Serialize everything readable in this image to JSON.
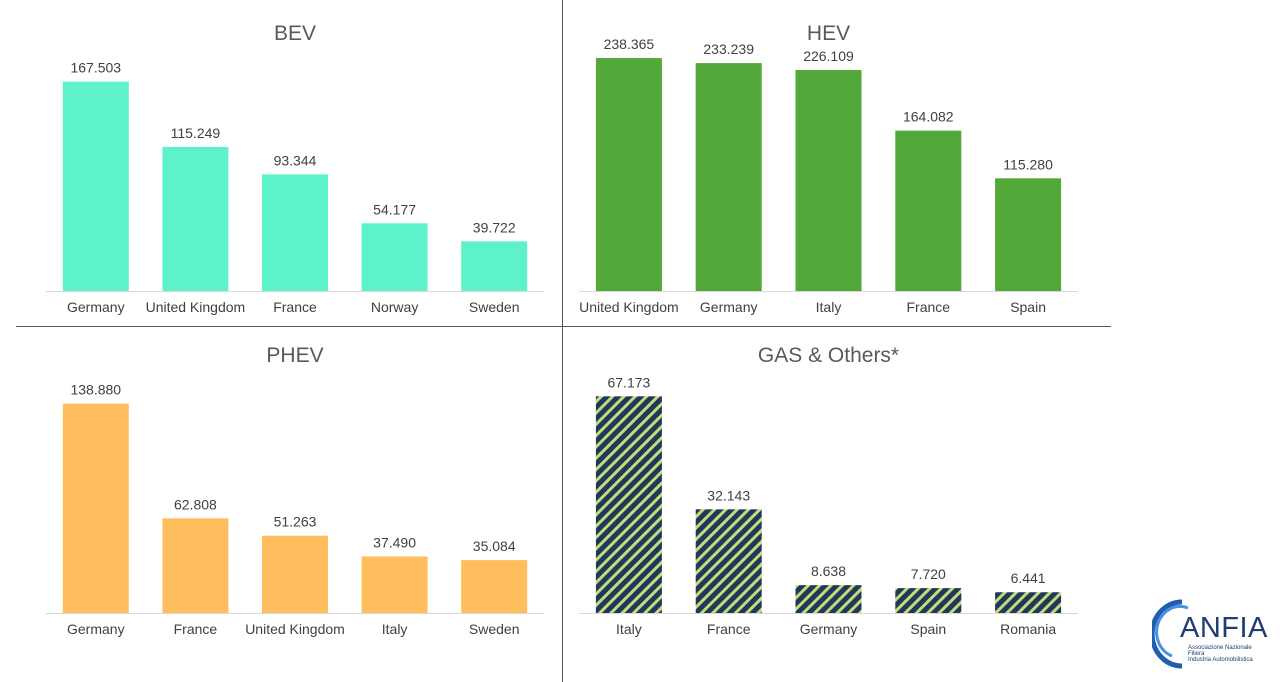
{
  "colors": {
    "bev": "#5ef2cb",
    "hev": "#52a838",
    "phev": "#ffbe5d",
    "gas_base": "#1e3a5a",
    "gas_stripe": "#c9d97a",
    "axis": "#d9d9d9",
    "divider": "#595959",
    "text": "#404040",
    "title": "#595959"
  },
  "chart_data": [
    {
      "type": "bar",
      "title": "BEV",
      "categories": [
        "Germany",
        "United Kingdom",
        "France",
        "Norway",
        "Sweden"
      ],
      "values": [
        167503,
        115249,
        93344,
        54177,
        39722
      ],
      "data_labels": [
        "167.503",
        "115.249",
        "93.344",
        "54.177",
        "39.722"
      ],
      "ylim": [
        0,
        240000
      ],
      "grid": false,
      "color": "bev"
    },
    {
      "type": "bar",
      "title": "HEV",
      "categories": [
        "United Kingdom",
        "Germany",
        "Italy",
        "France",
        "Spain"
      ],
      "values": [
        238365,
        233239,
        226109,
        164082,
        115280
      ],
      "data_labels": [
        "238.365",
        "233.239",
        "226.109",
        "164.082",
        "115.280"
      ],
      "ylim": [
        0,
        307000
      ],
      "grid": false,
      "color": "hev"
    },
    {
      "type": "bar",
      "title": "PHEV",
      "categories": [
        "Germany",
        "France",
        "United Kingdom",
        "Italy",
        "Sweden"
      ],
      "values": [
        138880,
        62808,
        51263,
        37490,
        35084
      ],
      "data_labels": [
        "138.880",
        "62.808",
        "51.263",
        "37.490",
        "35.084"
      ],
      "ylim": [
        0,
        199000
      ],
      "grid": false,
      "color": "phev"
    },
    {
      "type": "bar",
      "title": "GAS & Others*",
      "categories": [
        "Italy",
        "France",
        "Germany",
        "Spain",
        "Romania"
      ],
      "values": [
        67173,
        32143,
        8638,
        7720,
        6441
      ],
      "data_labels": [
        "67.173",
        "32.143",
        "8.638",
        "7.720",
        "6.441"
      ],
      "ylim": [
        0,
        93000
      ],
      "grid": false,
      "color": "gas"
    }
  ],
  "logo": {
    "brand": "ANFIA",
    "sub": [
      "Associazione Nazionale",
      "Filiera",
      "Industria Automobilistica"
    ]
  }
}
